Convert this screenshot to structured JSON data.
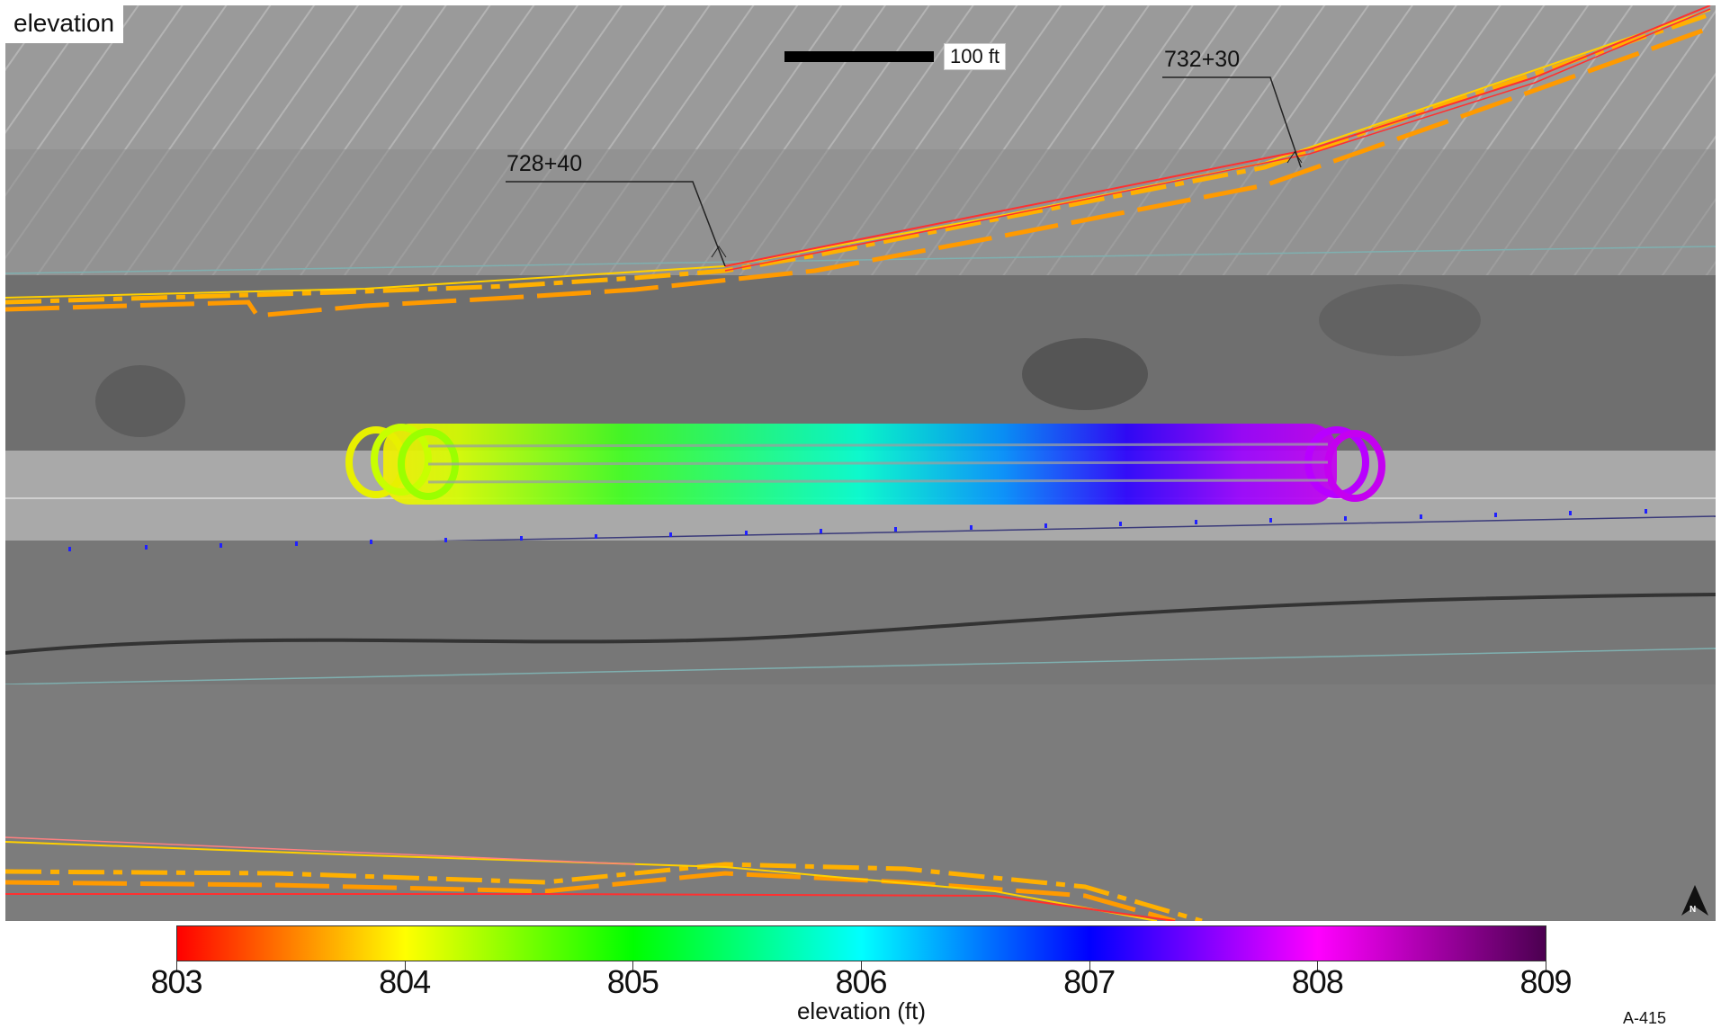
{
  "map": {
    "title": "elevation",
    "scale_bar_label": "100 ft",
    "station_labels": [
      "728+40",
      "732+30"
    ],
    "north_arrow_letter": "N",
    "north_icon": "north-arrow-icon"
  },
  "colorbar": {
    "label": "elevation (ft)",
    "ticks": [
      "803",
      "804",
      "805",
      "806",
      "807",
      "808",
      "809"
    ],
    "range": [
      803,
      809
    ],
    "colors": [
      "#ff0000",
      "#ffff00",
      "#00ff00",
      "#00ffff",
      "#0000ff",
      "#ff00ff",
      "#4b0050"
    ]
  },
  "sheet_id": "A-415"
}
